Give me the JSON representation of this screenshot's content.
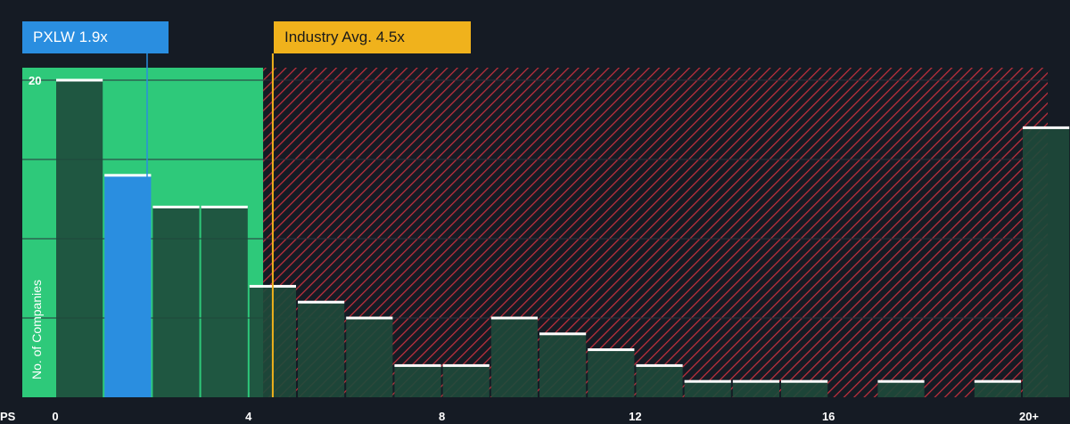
{
  "chart_data": {
    "type": "bar",
    "xlabel": "PS",
    "ylabel": "No. of Companies",
    "x_ticks": [
      "0",
      "4",
      "8",
      "12",
      "16",
      "20+"
    ],
    "y_ticks": [
      "20"
    ],
    "ylim": [
      0,
      21
    ],
    "bins": [
      {
        "x0": 0,
        "x1": 1,
        "value": 20
      },
      {
        "x0": 1,
        "x1": 2,
        "value": 14,
        "highlight": true
      },
      {
        "x0": 2,
        "x1": 3,
        "value": 12
      },
      {
        "x0": 3,
        "x1": 4,
        "value": 12
      },
      {
        "x0": 4,
        "x1": 5,
        "value": 7
      },
      {
        "x0": 5,
        "x1": 6,
        "value": 6
      },
      {
        "x0": 6,
        "x1": 7,
        "value": 5
      },
      {
        "x0": 7,
        "x1": 8,
        "value": 2
      },
      {
        "x0": 8,
        "x1": 9,
        "value": 2
      },
      {
        "x0": 9,
        "x1": 10,
        "value": 5
      },
      {
        "x0": 10,
        "x1": 11,
        "value": 4
      },
      {
        "x0": 11,
        "x1": 12,
        "value": 3
      },
      {
        "x0": 12,
        "x1": 13,
        "value": 2
      },
      {
        "x0": 13,
        "x1": 14,
        "value": 1
      },
      {
        "x0": 14,
        "x1": 15,
        "value": 1
      },
      {
        "x0": 15,
        "x1": 16,
        "value": 1
      },
      {
        "x0": 17,
        "x1": 18,
        "value": 1
      },
      {
        "x0": 19,
        "x1": 20,
        "value": 1
      },
      {
        "x0": 20,
        "x1": 21,
        "value": 17
      }
    ],
    "company": {
      "label": "PXLW 1.9x",
      "value": 1.9
    },
    "industry": {
      "label": "Industry Avg. 4.5x",
      "value": 4.5
    },
    "fair_zone_end": 4.3,
    "colors": {
      "background": "#151b24",
      "fair_zone": "#2ec97a",
      "bar_dark": "#1e4a3b",
      "highlight": "#2a8ee0",
      "hatch": "#c2303d",
      "industry": "#f0b21c",
      "cap": "#ffffff",
      "grid": "#2a313b"
    }
  }
}
